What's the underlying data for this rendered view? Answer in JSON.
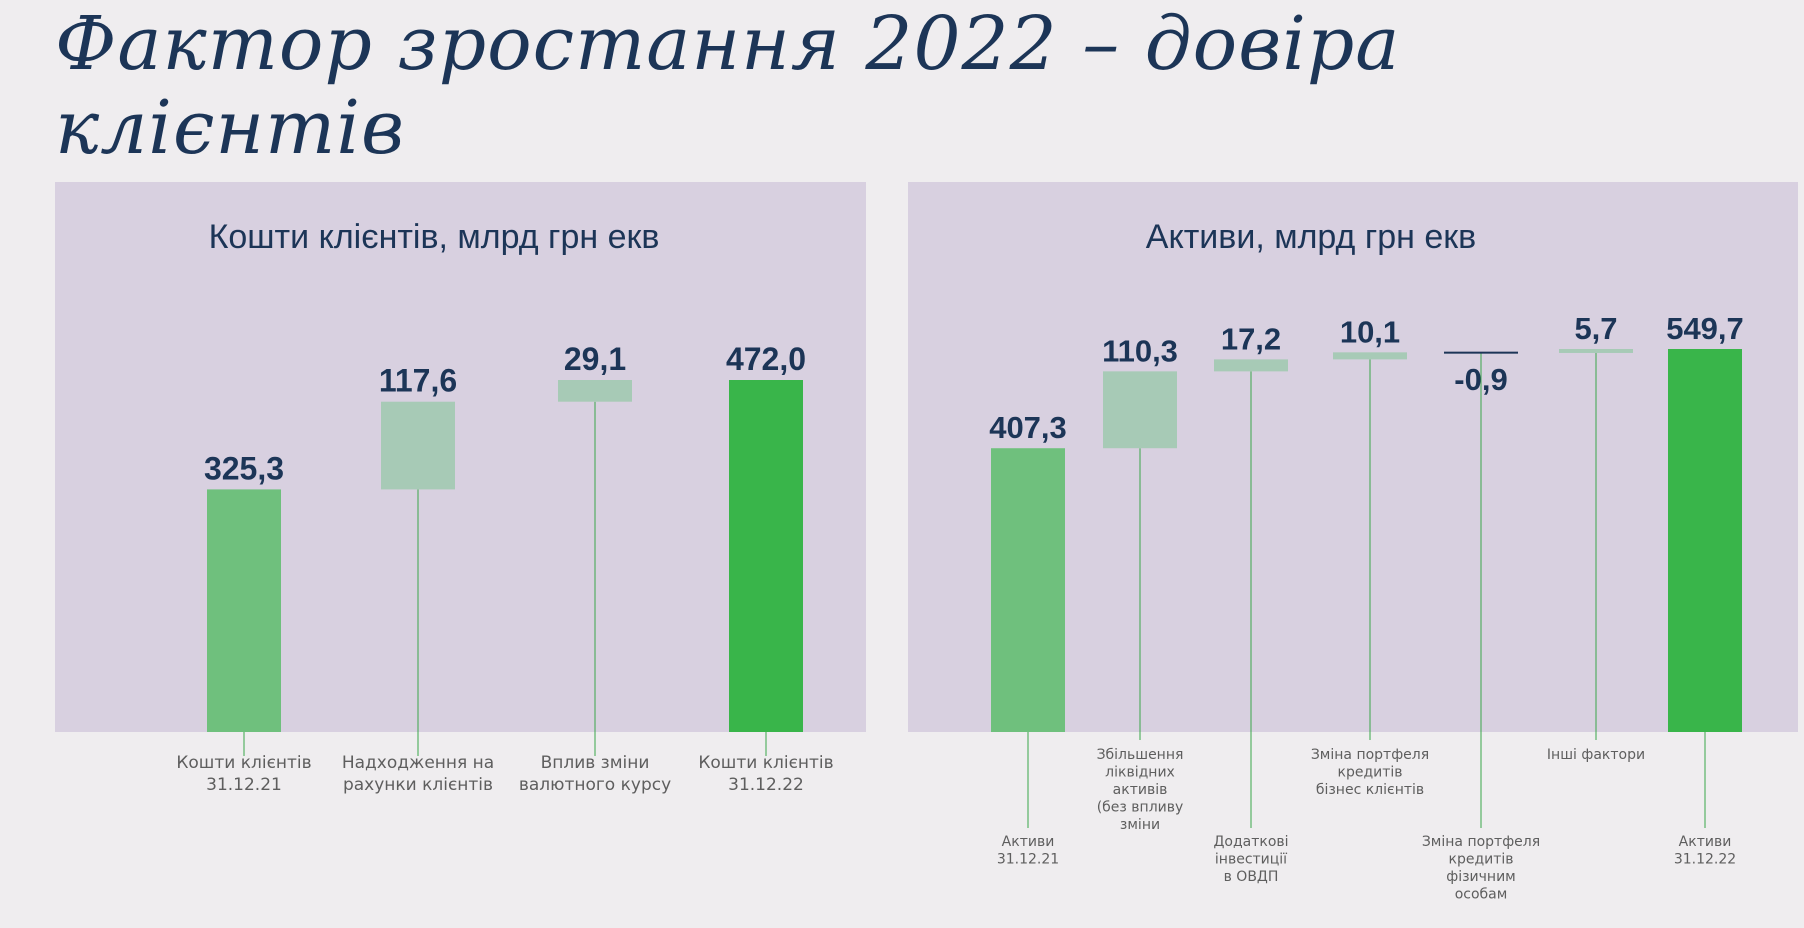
{
  "slide": {
    "title": "Фактор зростання 2022 – довіра клієнтів"
  },
  "colors": {
    "background": "#efedef",
    "panel": "#d8d0e0",
    "title": "#1c3557",
    "bar_total_start": "#6fc07d",
    "bar_total_end": "#39b54a",
    "bar_delta": "#a7cab6",
    "leader_line": "#3aa64a",
    "category_text": "#5e5e5e"
  },
  "chart_data": [
    {
      "type": "bar",
      "subtype": "waterfall",
      "title": "Кошти клієнтів, млрд грн екв",
      "xlabel": "",
      "ylabel": "",
      "grid": false,
      "ylim": [
        0,
        472.0
      ],
      "categories": [
        [
          "Кошти клієнтів",
          "31.12.21"
        ],
        [
          "Надходження на",
          "рахунки клієнтів"
        ],
        [
          "Вплив зміни",
          "валютного курсу"
        ],
        [
          "Кошти клієнтів",
          "31.12.22"
        ]
      ],
      "kinds": [
        "total",
        "delta",
        "delta",
        "total"
      ],
      "values": [
        325.3,
        117.6,
        29.1,
        472.0
      ],
      "labels": [
        "325,3",
        "117,6",
        "29,1",
        "472,0"
      ]
    },
    {
      "type": "bar",
      "subtype": "waterfall",
      "title": "Активи, млрд грн екв",
      "xlabel": "",
      "ylabel": "",
      "grid": false,
      "ylim": [
        0,
        549.7
      ],
      "categories": [
        [
          "Активи",
          "31.12.21"
        ],
        [
          "Збільшення",
          "ліквідних",
          "активів",
          "(без впливу",
          "зміни"
        ],
        [
          "Додаткові",
          "інвестиції",
          "в ОВДП"
        ],
        [
          "Зміна портфеля",
          "кредитів",
          "бізнес клієнтів"
        ],
        [
          "Зміна портфеля",
          "кредитів",
          "фізичним",
          "особам"
        ],
        [
          "Інші фактори"
        ],
        [
          "Активи",
          "31.12.22"
        ]
      ],
      "kinds": [
        "total",
        "delta",
        "delta",
        "delta",
        "delta",
        "delta",
        "total"
      ],
      "values": [
        407.3,
        110.3,
        17.2,
        10.1,
        -0.9,
        5.7,
        549.7
      ],
      "labels": [
        "407,3",
        "110,3",
        "17,2",
        "10,1",
        "-0,9",
        "5,7",
        "549,7"
      ]
    }
  ]
}
